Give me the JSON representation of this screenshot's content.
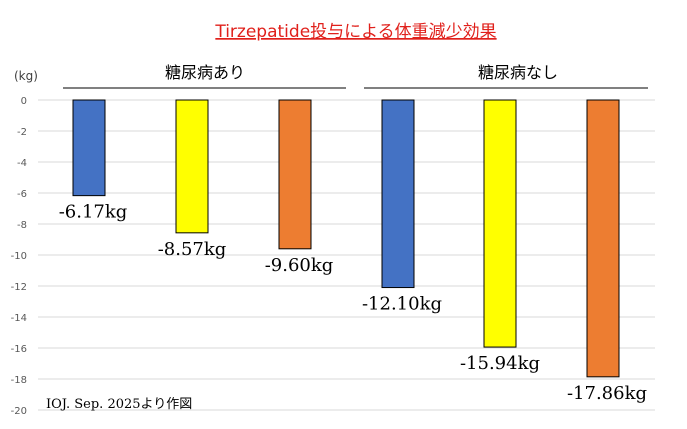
{
  "chart_data": {
    "type": "bar",
    "title": "Tirzepatide投与による体重減少効果",
    "ylabel": "(kg)",
    "ylim": [
      -20,
      0
    ],
    "yticks": [
      0,
      -2,
      -4,
      -6,
      -8,
      -10,
      -12,
      -14,
      -16,
      -18,
      -20
    ],
    "grid": true,
    "groups": [
      {
        "label": "糖尿病あり",
        "values": [
          -6.17,
          -8.57,
          -9.6
        ],
        "data_labels": [
          "-6.17kg",
          "-8.57kg",
          "-9.60kg"
        ]
      },
      {
        "label": "糖尿病なし",
        "values": [
          -12.1,
          -15.94,
          -17.86
        ],
        "data_labels": [
          "-12.10kg",
          "-15.94kg",
          "-17.86kg"
        ]
      }
    ],
    "bar_colors": [
      "#4472C4",
      "#FFFF00",
      "#ED7D31"
    ],
    "source_note": "IOJ. Sep. 2025より作図"
  },
  "colors": {
    "title": "#E0201B",
    "grid": "#D9D9D9",
    "axis_text": "#595959"
  }
}
